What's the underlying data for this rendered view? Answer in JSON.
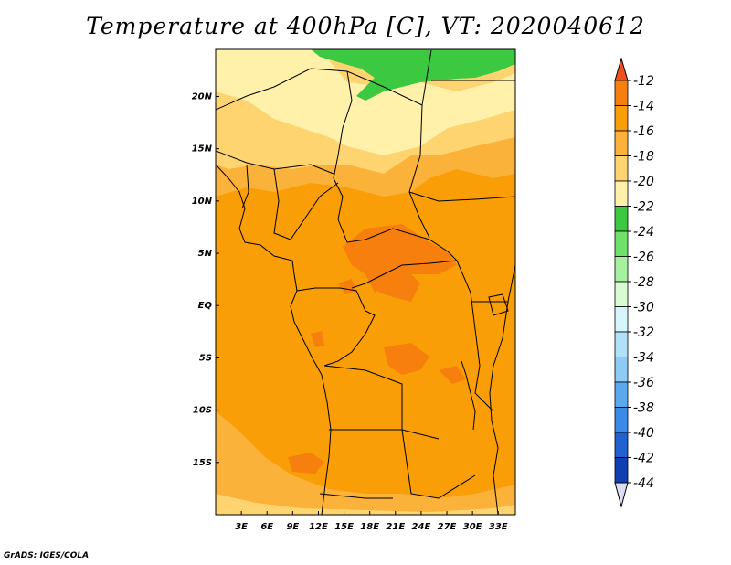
{
  "title": "Temperature at 400hPa [C], VT: 2020040612",
  "credit": "GrADS: IGES/COLA",
  "map": {
    "lon_range": [
      0,
      35
    ],
    "lat_range": [
      -20,
      24.5
    ],
    "lon_ticks": [
      {
        "value": 3,
        "label": "3E"
      },
      {
        "value": 6,
        "label": "6E"
      },
      {
        "value": 9,
        "label": "9E"
      },
      {
        "value": 12,
        "label": "12E"
      },
      {
        "value": 15,
        "label": "15E"
      },
      {
        "value": 18,
        "label": "18E"
      },
      {
        "value": 21,
        "label": "21E"
      },
      {
        "value": 24,
        "label": "24E"
      },
      {
        "value": 27,
        "label": "27E"
      },
      {
        "value": 30,
        "label": "30E"
      },
      {
        "value": 33,
        "label": "33E"
      }
    ],
    "lat_ticks": [
      {
        "value": 20,
        "label": "20N"
      },
      {
        "value": 15,
        "label": "15N"
      },
      {
        "value": 10,
        "label": "10N"
      },
      {
        "value": 5,
        "label": "5N"
      },
      {
        "value": 0,
        "label": "EQ"
      },
      {
        "value": -5,
        "label": "5S"
      },
      {
        "value": -10,
        "label": "10S"
      },
      {
        "value": -15,
        "label": "15S"
      }
    ]
  },
  "colorbar": {
    "levels": [
      {
        "label": "-12",
        "color": "#f77f0d"
      },
      {
        "label": "-14",
        "color": "#f99e07"
      },
      {
        "label": "-16",
        "color": "#fbb23a"
      },
      {
        "label": "-18",
        "color": "#fdd46f"
      },
      {
        "label": "-20",
        "color": "#fff0aa"
      },
      {
        "label": "-22",
        "color": "#3cc840"
      },
      {
        "label": "-24",
        "color": "#6fe06a"
      },
      {
        "label": "-26",
        "color": "#a6f09e"
      },
      {
        "label": "-28",
        "color": "#d8fbd3"
      },
      {
        "label": "-30",
        "color": "#d6f5fc"
      },
      {
        "label": "-32",
        "color": "#b1e1f9"
      },
      {
        "label": "-34",
        "color": "#8dcaf4"
      },
      {
        "label": "-36",
        "color": "#5ba9ec"
      },
      {
        "label": "-38",
        "color": "#3b8ae6"
      },
      {
        "label": "-40",
        "color": "#2262d0"
      },
      {
        "label": "-42",
        "color": "#0f3fb0"
      },
      {
        "label": "-44",
        "color": "#0a1670"
      }
    ],
    "top_color": "#f0501e",
    "bottom_color": "#dcdcf5"
  }
}
